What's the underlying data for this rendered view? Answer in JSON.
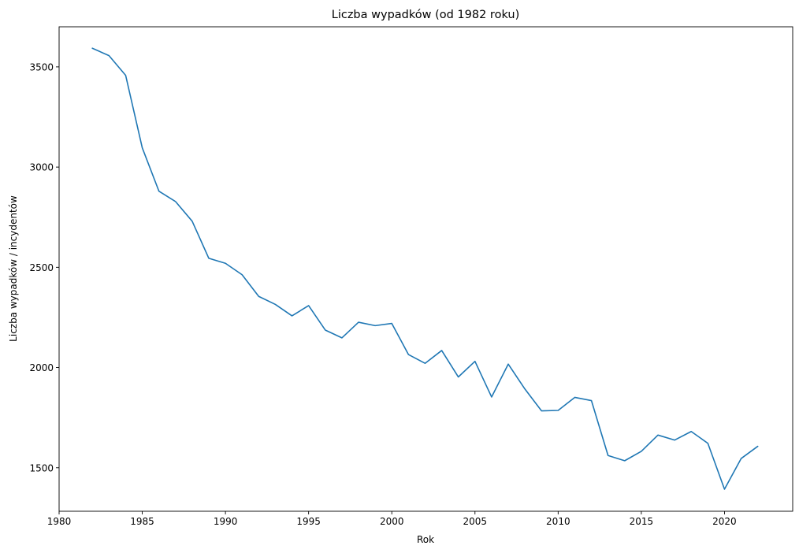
{
  "chart_data": {
    "type": "line",
    "title": "Liczba wypadków (od 1982 roku)",
    "xlabel": "Rok",
    "ylabel": "Liczba wypadków / incydentów",
    "xlim": [
      1980,
      2024.1
    ],
    "ylim": [
      1283,
      3700
    ],
    "xticks": [
      1980,
      1985,
      1990,
      1995,
      2000,
      2005,
      2010,
      2015,
      2020
    ],
    "yticks": [
      1500,
      2000,
      2500,
      3000,
      3500
    ],
    "grid": false,
    "legend": "none",
    "color": "#1f77b4",
    "series": [
      {
        "x": [
          1982,
          1983,
          1984,
          1985,
          1986,
          1987,
          1988,
          1989,
          1990,
          1991,
          1992,
          1993,
          1994,
          1995,
          1996,
          1997,
          1998,
          1999,
          2000,
          2001,
          2002,
          2003,
          2004,
          2005,
          2006,
          2007,
          2008,
          2009,
          2010,
          2011,
          2012,
          2013,
          2014,
          2015,
          2016,
          2017,
          2018,
          2019,
          2020,
          2021,
          2022
        ],
        "values": [
          3593,
          3556,
          3458,
          3096,
          2880,
          2828,
          2730,
          2545,
          2520,
          2463,
          2355,
          2315,
          2258,
          2309,
          2187,
          2148,
          2226,
          2209,
          2220,
          2065,
          2021,
          2085,
          1953,
          2031,
          1853,
          2017,
          1893,
          1784,
          1786,
          1851,
          1835,
          1561,
          1535,
          1582,
          1663,
          1638,
          1681,
          1622,
          1393,
          1546,
          1607
        ]
      }
    ]
  }
}
